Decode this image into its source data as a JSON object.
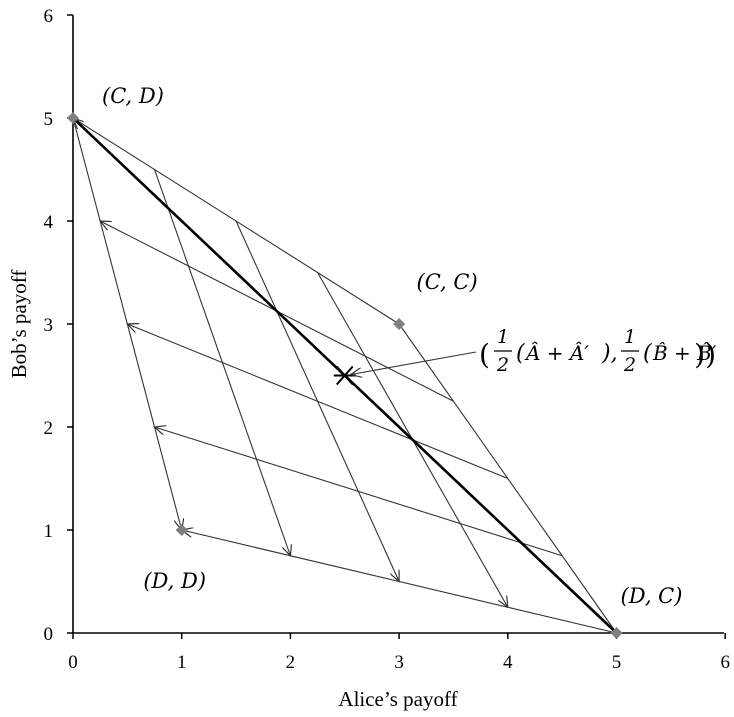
{
  "chart_data": {
    "type": "scatter",
    "title": "",
    "xlabel": "Alice’s payoff",
    "ylabel": "Bob’s payoff",
    "xlim": [
      0,
      6
    ],
    "ylim": [
      0,
      6
    ],
    "x_ticks": [
      "0",
      "1",
      "2",
      "3",
      "4",
      "5",
      "6"
    ],
    "y_ticks": [
      "0",
      "1",
      "2",
      "3",
      "4",
      "5",
      "6"
    ],
    "points": [
      {
        "label": "(C, D)",
        "x": 0,
        "y": 5
      },
      {
        "label": "(C, C)",
        "x": 3,
        "y": 3
      },
      {
        "label": "(D, D)",
        "x": 1,
        "y": 1
      },
      {
        "label": "(D, C)",
        "x": 5,
        "y": 0
      }
    ],
    "midpoint": {
      "x": 2.5,
      "y": 2.5
    },
    "arrow_paths_left": [
      {
        "from": [
          4.5,
          0.75
        ],
        "to": [
          0.75,
          2
        ]
      },
      {
        "from": [
          4.0,
          1.5
        ],
        "to": [
          0.5,
          3
        ]
      },
      {
        "from": [
          3.5,
          2.25
        ],
        "to": [
          0.25,
          4
        ]
      },
      {
        "from": [
          5.0,
          0.0
        ],
        "to": [
          0.0,
          5
        ]
      },
      {
        "from": [
          5.0,
          0.0
        ],
        "to": [
          1.0,
          1
        ]
      }
    ],
    "arrow_paths_down": [
      {
        "from": [
          0.75,
          4.5
        ],
        "to": [
          2,
          0.75
        ]
      },
      {
        "from": [
          1.5,
          4.0
        ],
        "to": [
          3,
          0.5
        ]
      },
      {
        "from": [
          2.25,
          3.5
        ],
        "to": [
          4,
          0.25
        ]
      },
      {
        "from": [
          0.0,
          5.0
        ],
        "to": [
          1,
          1
        ]
      }
    ],
    "plain_lines": [
      {
        "from": [
          0,
          5
        ],
        "to": [
          3,
          3
        ]
      },
      {
        "from": [
          3,
          3
        ],
        "to": [
          5,
          0
        ]
      }
    ],
    "bold_line": {
      "from": [
        0,
        5
      ],
      "to": [
        5,
        0
      ]
    },
    "annotation": {
      "text_parts": [
        "(",
        "1",
        "2",
        "(",
        "Â + Â′",
        "),",
        "1",
        "2",
        "(",
        "B̂ + B̂′",
        "))"
      ],
      "target": [
        2.5,
        2.5
      ]
    }
  }
}
